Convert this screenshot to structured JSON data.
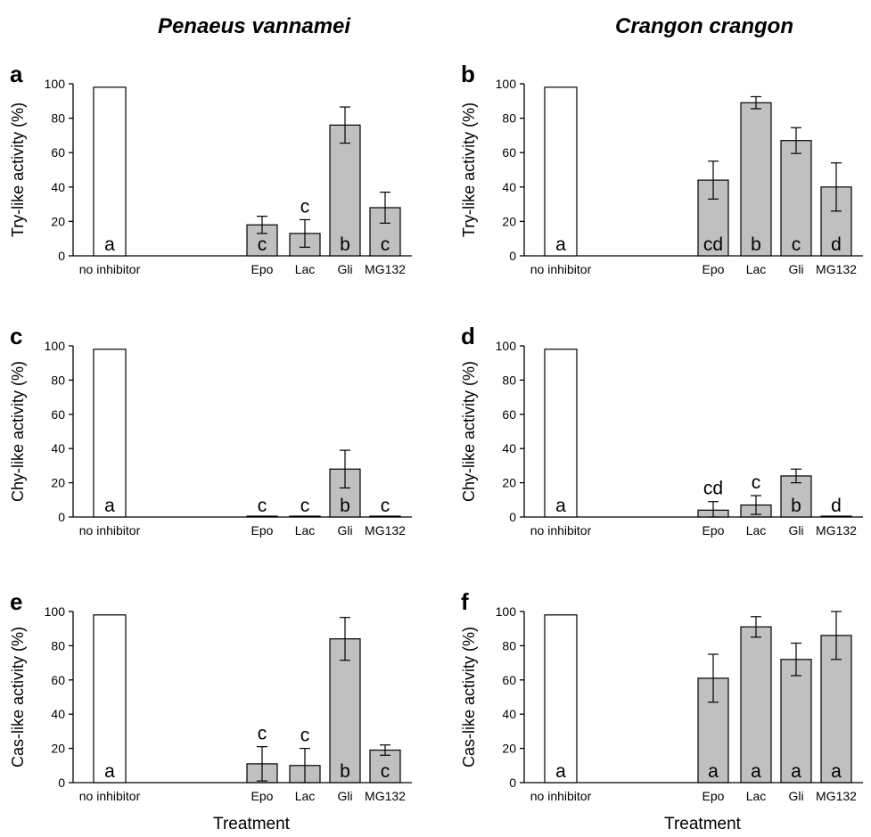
{
  "column_titles": [
    "Penaeus vannamei",
    "Crangon crangon"
  ],
  "chart_data": [
    {
      "panel": "a",
      "type": "bar",
      "species": "Penaeus vannamei",
      "ylabel": "Try-like activity (%)",
      "xlabel": "",
      "ylim": [
        0,
        100
      ],
      "yticks": [
        0,
        20,
        40,
        60,
        80,
        100
      ],
      "categories": [
        "no inhibitor",
        "Epo",
        "Lac",
        "Gli",
        "MG132"
      ],
      "values": [
        98,
        18,
        13,
        76,
        28
      ],
      "errors": [
        0,
        5,
        8,
        10.5,
        9
      ],
      "letters": [
        "a",
        "c",
        "c",
        "b",
        "c"
      ],
      "letters_above": [
        false,
        false,
        true,
        false,
        false
      ]
    },
    {
      "panel": "b",
      "type": "bar",
      "species": "Crangon crangon",
      "ylabel": "Try-like activity (%)",
      "xlabel": "",
      "ylim": [
        0,
        100
      ],
      "yticks": [
        0,
        20,
        40,
        60,
        80,
        100
      ],
      "categories": [
        "no inhibitor",
        "Epo",
        "Lac",
        "Gli",
        "MG132"
      ],
      "values": [
        98,
        44,
        89,
        67,
        40
      ],
      "errors": [
        0,
        11,
        3.5,
        7.5,
        14
      ],
      "letters": [
        "a",
        "cd",
        "b",
        "c",
        "d"
      ],
      "letters_above": [
        false,
        false,
        false,
        false,
        false
      ]
    },
    {
      "panel": "c",
      "type": "bar",
      "species": "Penaeus vannamei",
      "ylabel": "Chy-like activity (%)",
      "xlabel": "",
      "ylim": [
        0,
        100
      ],
      "yticks": [
        0,
        20,
        40,
        60,
        80,
        100
      ],
      "categories": [
        "no inhibitor",
        "Epo",
        "Lac",
        "Gli",
        "MG132"
      ],
      "values": [
        98,
        0.5,
        0.5,
        28,
        0.5
      ],
      "errors": [
        0,
        0,
        0,
        11,
        0
      ],
      "letters": [
        "a",
        "c",
        "c",
        "b",
        "c"
      ],
      "letters_above": [
        false,
        false,
        false,
        false,
        false
      ]
    },
    {
      "panel": "d",
      "type": "bar",
      "species": "Crangon crangon",
      "ylabel": "Chy-like activity (%)",
      "xlabel": "",
      "ylim": [
        0,
        100
      ],
      "yticks": [
        0,
        20,
        40,
        60,
        80,
        100
      ],
      "categories": [
        "no inhibitor",
        "Epo",
        "Lac",
        "Gli",
        "MG132"
      ],
      "values": [
        98,
        4,
        7,
        24,
        0.5
      ],
      "errors": [
        0,
        5,
        5.5,
        4,
        0
      ],
      "letters": [
        "a",
        "cd",
        "c",
        "b",
        "d"
      ],
      "letters_above": [
        false,
        true,
        true,
        false,
        false
      ]
    },
    {
      "panel": "e",
      "type": "bar",
      "species": "Penaeus vannamei",
      "ylabel": "Cas-like activity (%)",
      "xlabel": "Treatment",
      "ylim": [
        0,
        100
      ],
      "yticks": [
        0,
        20,
        40,
        60,
        80,
        100
      ],
      "categories": [
        "no inhibitor",
        "Epo",
        "Lac",
        "Gli",
        "MG132"
      ],
      "values": [
        98,
        11,
        10,
        84,
        19
      ],
      "errors": [
        0,
        10,
        10,
        12.5,
        3
      ],
      "letters": [
        "a",
        "c",
        "c",
        "b",
        "c"
      ],
      "letters_above": [
        false,
        true,
        true,
        false,
        false
      ]
    },
    {
      "panel": "f",
      "type": "bar",
      "species": "Crangon crangon",
      "ylabel": "Cas-like activity (%)",
      "xlabel": "Treatment",
      "ylim": [
        0,
        100
      ],
      "yticks": [
        0,
        20,
        40,
        60,
        80,
        100
      ],
      "categories": [
        "no inhibitor",
        "Epo",
        "Lac",
        "Gli",
        "MG132"
      ],
      "values": [
        98,
        61,
        91,
        72,
        86
      ],
      "errors": [
        0,
        14,
        6,
        9.5,
        14
      ],
      "letters": [
        "a",
        "a",
        "a",
        "a",
        "a"
      ],
      "letters_above": [
        false,
        false,
        false,
        false,
        false
      ]
    }
  ],
  "colors": {
    "control_bar": "#ffffff",
    "treatment_bar": "#c0c0c0",
    "stroke": "#000000"
  }
}
